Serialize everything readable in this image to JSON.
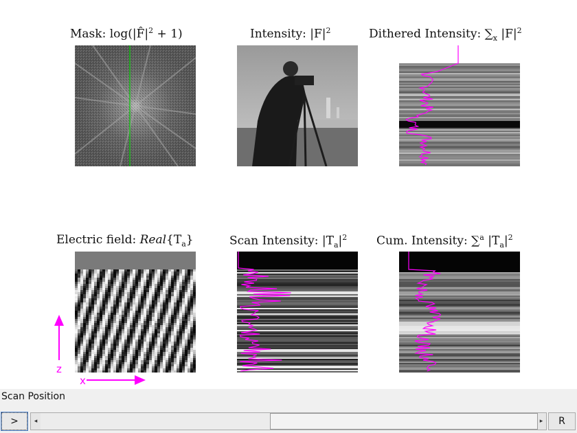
{
  "titles": {
    "mask": "Mask: log(|F̂|",
    "mask_sup": "2",
    "mask_tail": " + 1)",
    "intensity": "Intensity: |F|",
    "intensity_sup": "2",
    "dithered": "Dithered Intensity: ∑",
    "dithered_sub": "x",
    "dithered_tail": " |F|",
    "dithered_sup": "2",
    "efield": "Electric field: ",
    "efield_italic": "Real",
    "efield_tail": "{T",
    "efield_sub": "a",
    "efield_close": "}",
    "scan": "Scan Intensity: |T",
    "scan_sub": "a",
    "scan_tail": "|",
    "scan_sup": "2",
    "cum": "Cum. Intensity: ∑",
    "cum_sup_a": "a",
    "cum_tail": " |T",
    "cum_sub": "a",
    "cum_tail2": "|",
    "cum_sup": "2"
  },
  "axes": {
    "z_label": "z",
    "x_label": "x"
  },
  "controls": {
    "scan_position_label": "Scan Position",
    "play_label": ">",
    "reset_label": "R",
    "slider_left_arrow": "◂",
    "slider_right_arrow": "▸"
  },
  "colors": {
    "magenta": "#ff00ff",
    "green_line": "#00cc00"
  },
  "icons": {
    "z_arrow": "arrow-up-icon",
    "x_arrow": "arrow-right-icon"
  }
}
